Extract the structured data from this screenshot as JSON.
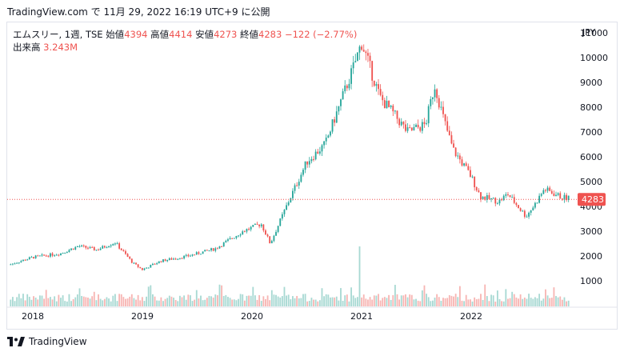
{
  "header": {
    "attribution": "TradingView.com で 11月 29, 2022 16:19 UTC+9 に公開"
  },
  "legend": {
    "symbol": "エムスリー, 1週, TSE",
    "open_label": "始値",
    "open": "4394",
    "high_label": "高値",
    "high": "4414",
    "low_label": "安値",
    "low": "4273",
    "close_label": "終値",
    "close": "4283",
    "change": "−122 (−2.77%)",
    "volume_label": "出来高",
    "volume": "3.243M"
  },
  "footer": {
    "brand": "TradingView"
  },
  "colors": {
    "up": "#26a69a",
    "down": "#ef5350",
    "vol_up": "#a8d9d3",
    "vol_down": "#f7b5b3"
  },
  "chart_data": {
    "type": "candlestick",
    "currency": "JPY",
    "y_ticks": [
      1000,
      2000,
      3000,
      4000,
      5000,
      6000,
      7000,
      8000,
      9000,
      10000,
      11000
    ],
    "x_ticks": [
      "2018",
      "2019",
      "2020",
      "2021",
      "2022"
    ],
    "ylim": [
      0,
      11400
    ],
    "last_price": "4283",
    "price_path": [
      {
        "t": "2017-10",
        "p": 1600
      },
      {
        "t": "2018-01",
        "p": 1950
      },
      {
        "t": "2018-04",
        "p": 2100
      },
      {
        "t": "2018-06",
        "p": 2400
      },
      {
        "t": "2018-08",
        "p": 2250
      },
      {
        "t": "2018-10",
        "p": 2550
      },
      {
        "t": "2018-12",
        "p": 1700
      },
      {
        "t": "2019-01",
        "p": 1450
      },
      {
        "t": "2019-03",
        "p": 1800
      },
      {
        "t": "2019-06",
        "p": 2000
      },
      {
        "t": "2019-09",
        "p": 2300
      },
      {
        "t": "2019-12",
        "p": 3000
      },
      {
        "t": "2020-02",
        "p": 3300
      },
      {
        "t": "2020-03",
        "p": 2500
      },
      {
        "t": "2020-05",
        "p": 4200
      },
      {
        "t": "2020-07",
        "p": 5800
      },
      {
        "t": "2020-09",
        "p": 6500
      },
      {
        "t": "2020-11",
        "p": 8500
      },
      {
        "t": "2020-12",
        "p": 9500
      },
      {
        "t": "2021-01",
        "p": 10600
      },
      {
        "t": "2021-02",
        "p": 9500
      },
      {
        "t": "2021-03",
        "p": 8400
      },
      {
        "t": "2021-05",
        "p": 7500
      },
      {
        "t": "2021-06",
        "p": 7000
      },
      {
        "t": "2021-08",
        "p": 7300
      },
      {
        "t": "2021-09",
        "p": 8900
      },
      {
        "t": "2021-10",
        "p": 7500
      },
      {
        "t": "2021-11",
        "p": 6300
      },
      {
        "t": "2022-01",
        "p": 5200
      },
      {
        "t": "2022-02",
        "p": 4400
      },
      {
        "t": "2022-04",
        "p": 4200
      },
      {
        "t": "2022-05",
        "p": 4500
      },
      {
        "t": "2022-07",
        "p": 3600
      },
      {
        "t": "2022-08",
        "p": 4100
      },
      {
        "t": "2022-09",
        "p": 4700
      },
      {
        "t": "2022-11",
        "p": 4350
      }
    ]
  }
}
